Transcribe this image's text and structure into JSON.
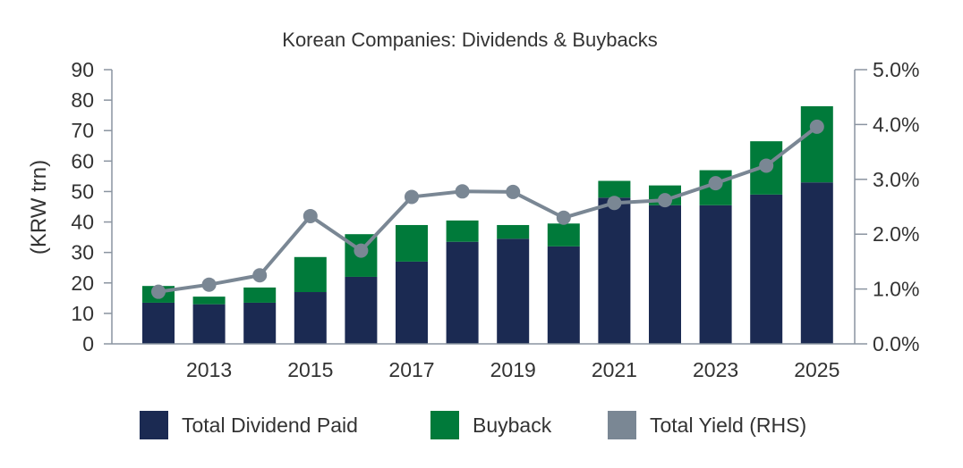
{
  "chart_data": {
    "type": "bar",
    "title": "Korean Companies: Dividends & Buybacks",
    "ylabel": "(KRW trn)",
    "xlabel": "",
    "ylim": [
      0,
      90
    ],
    "y_ticks": [
      "0",
      "10",
      "20",
      "30",
      "40",
      "50",
      "60",
      "70",
      "80",
      "90"
    ],
    "y2lim": [
      0,
      5.0
    ],
    "y2_ticks": [
      "0.0%",
      "1.0%",
      "2.0%",
      "3.0%",
      "4.0%",
      "5.0%"
    ],
    "categories": [
      "2012",
      "2013",
      "2014",
      "2015",
      "2016",
      "2017",
      "2018",
      "2019",
      "2020",
      "2021",
      "2022",
      "2023",
      "2024",
      "2025"
    ],
    "x_tick_labels": [
      "2013",
      "2015",
      "2017",
      "2019",
      "2021",
      "2023",
      "2025"
    ],
    "stacked": true,
    "grid": false,
    "legend_position": "bottom",
    "series": [
      {
        "name": "Total Dividend Paid",
        "kind": "bar",
        "color": "#1b2a52",
        "values": [
          13.5,
          13,
          13.5,
          17,
          22,
          27,
          33.5,
          34.5,
          32,
          48,
          45.5,
          45.5,
          49,
          53
        ]
      },
      {
        "name": "Buyback",
        "kind": "bar",
        "color": "#007a3a",
        "values": [
          5.5,
          2.5,
          5,
          11.5,
          14,
          12,
          7,
          4.5,
          7.5,
          5.5,
          6.5,
          11.5,
          17.5,
          25
        ]
      },
      {
        "name": "Total Yield (RHS)",
        "kind": "line",
        "axis": "right",
        "color": "#7a8794",
        "values": [
          0.95,
          1.08,
          1.25,
          2.33,
          1.7,
          2.68,
          2.78,
          2.77,
          2.3,
          2.57,
          2.62,
          2.93,
          3.25,
          3.96
        ]
      }
    ]
  }
}
